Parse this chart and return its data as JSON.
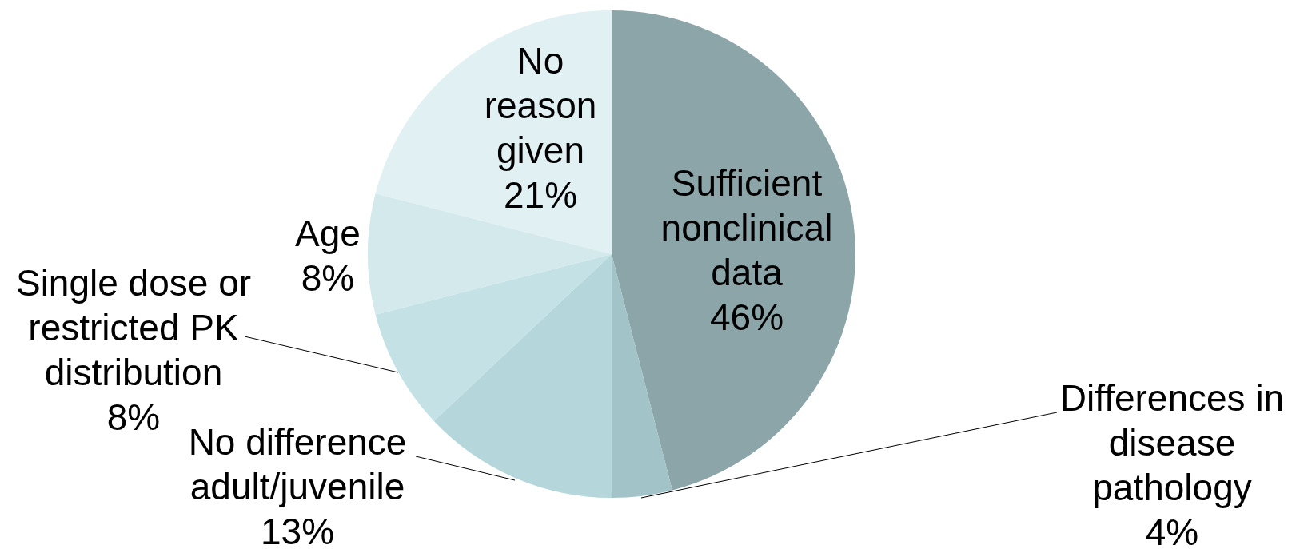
{
  "chart_data": {
    "type": "pie",
    "categories": [
      "Sufficient nonclinical data",
      "Differences in disease pathology",
      "No difference adult/juvenile",
      "Single dose or restricted PK distribution",
      "Age",
      "No reason given"
    ],
    "values": [
      46,
      4,
      13,
      8,
      8,
      21
    ],
    "value_labels": [
      "46%",
      "4%",
      "13%",
      "8%",
      "8%",
      "21%"
    ],
    "colors": [
      "#8ba5a8",
      "#a2c3c7",
      "#b5d6da",
      "#c4e2e6",
      "#d3e9ec",
      "#e1f0f3"
    ]
  }
}
